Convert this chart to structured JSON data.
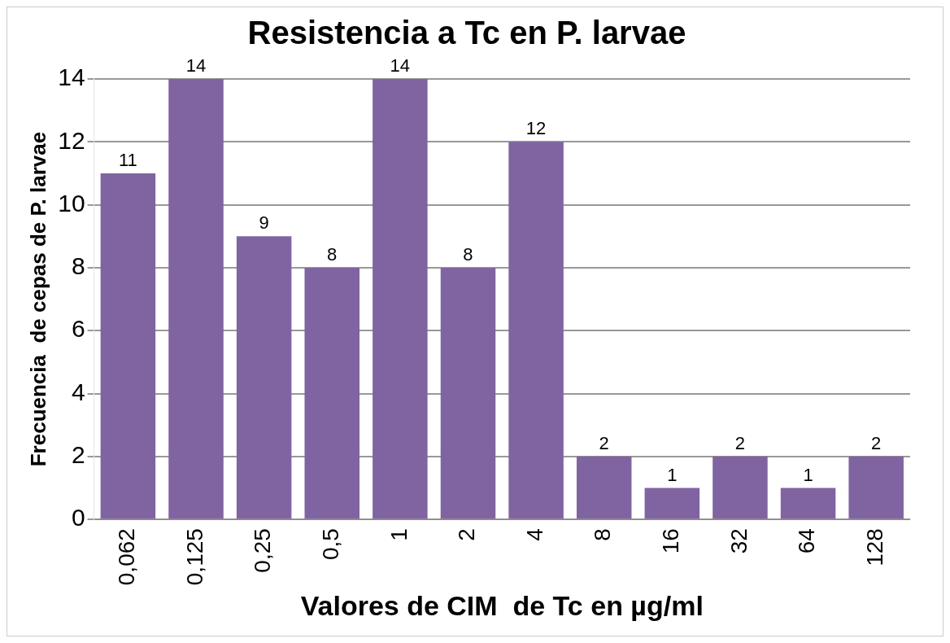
{
  "chart_data": {
    "type": "bar",
    "title": "Resistencia a Tc en P. larvae",
    "xlabel": "Valores de CIM  de Tc en µg/ml",
    "ylabel": "Frecuencia  de cepas de P. larvae",
    "categories": [
      "0,062",
      "0,125",
      "0,25",
      "0,5",
      "1",
      "2",
      "4",
      "8",
      "16",
      "32",
      "64",
      "128"
    ],
    "values": [
      11,
      14,
      9,
      8,
      14,
      8,
      12,
      2,
      1,
      2,
      1,
      2
    ],
    "color": "#8064a2",
    "ylim": [
      0,
      14
    ],
    "yticks": [
      0,
      2,
      4,
      6,
      8,
      10,
      12,
      14
    ],
    "grid": "y",
    "data_labels": true,
    "legend": false
  }
}
